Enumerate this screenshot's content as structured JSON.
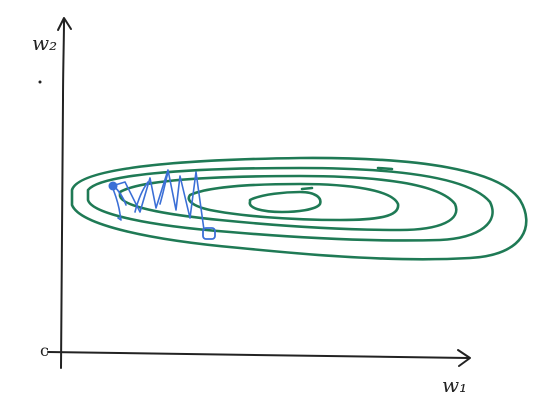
{
  "axes": {
    "vertical_label": "w₂",
    "horizontal_label": "w₁",
    "origin_mark": "c"
  },
  "contours": {
    "count": 5,
    "color": "#1f7a55"
  },
  "descent_path": {
    "color": "#3b6fd6",
    "start_marker": "filled-dot",
    "end_marker": "open-square"
  }
}
